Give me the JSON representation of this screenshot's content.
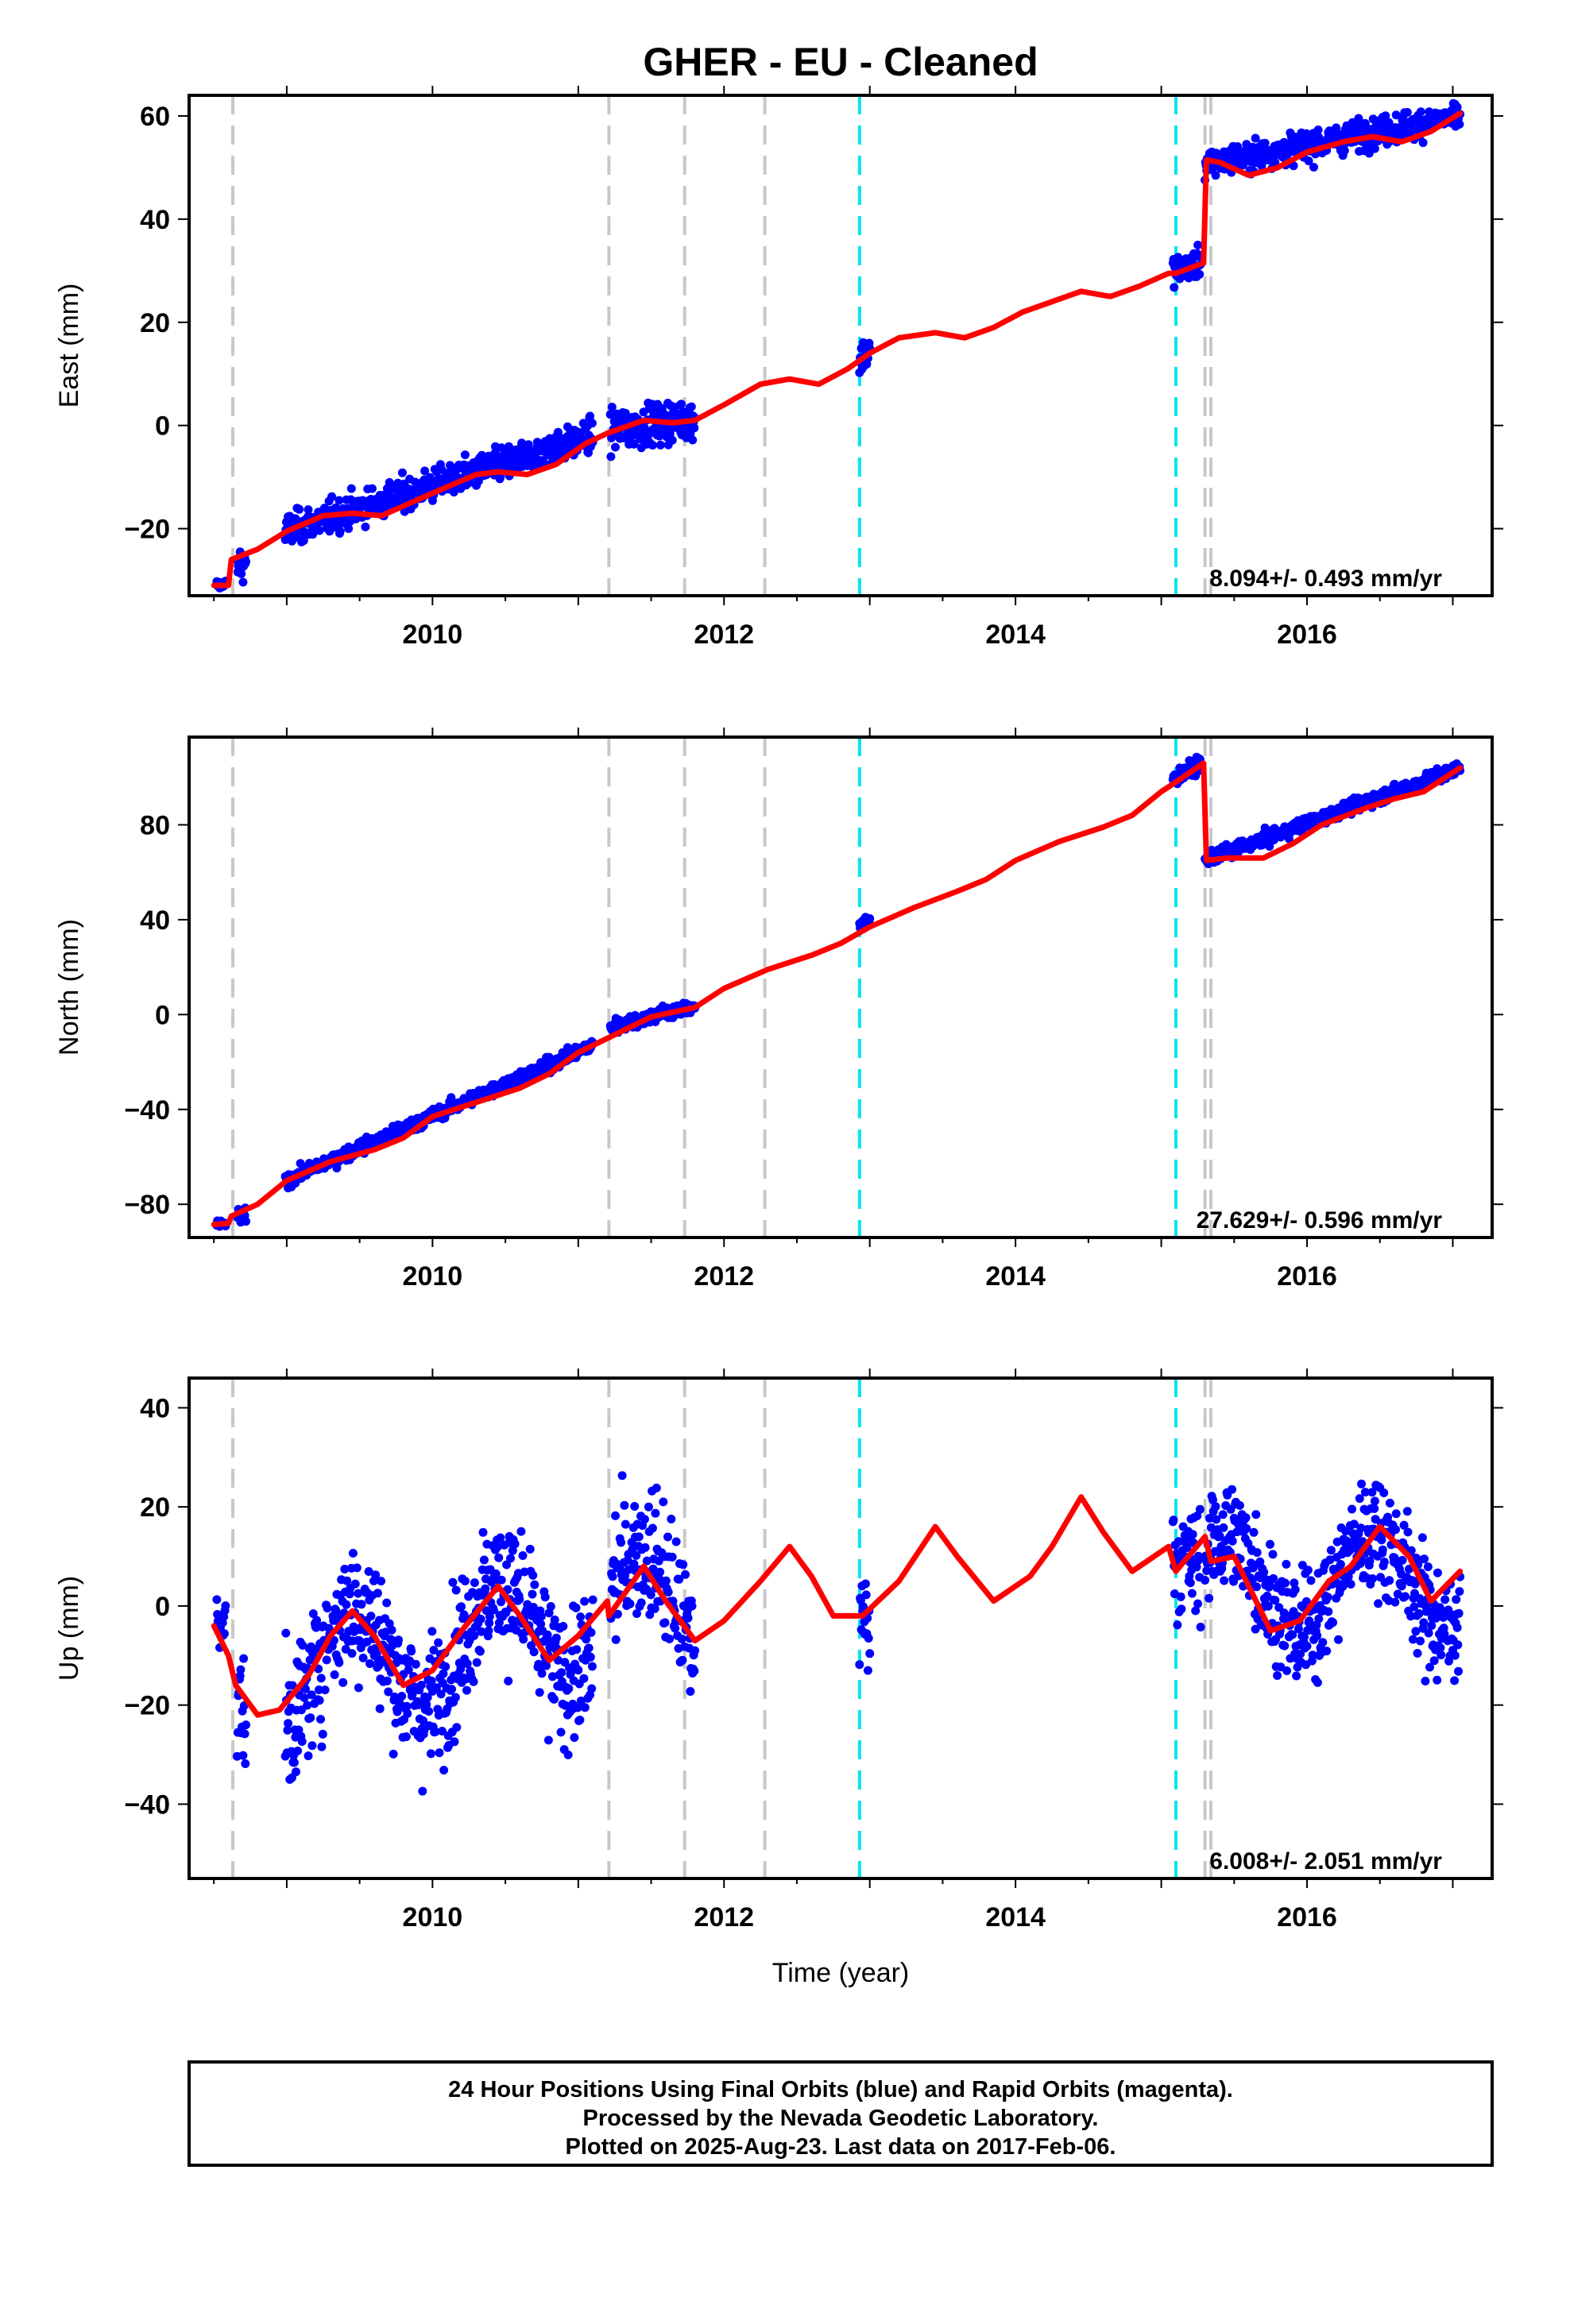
{
  "title": "GHER  - EU - Cleaned",
  "xlabel": "Time (year)",
  "footer": {
    "line1": "24 Hour Positions Using Final Orbits (blue) and Rapid Orbits (magenta).",
    "line2": "Processed by the Nevada Geodetic Laboratory.",
    "line3": "Plotted on 2025-Aug-23. Last data on 2017-Feb-06."
  },
  "colors": {
    "data_points": "#0000ff",
    "fit_line": "#ff0000",
    "gray_steps": "#c8c8c8",
    "cyan_steps": "#00e5ee"
  },
  "chart_data": [
    {
      "type": "scatter",
      "component": "east",
      "ylabel": "East (mm)",
      "rate": "8.094+/- 0.493 mm/yr",
      "xlim": [
        2008.33,
        2017.27
      ],
      "ylim": [
        -33,
        64
      ],
      "yticks": [
        -20,
        0,
        20,
        40,
        60
      ],
      "xticks": [
        2010,
        2012,
        2014,
        2016
      ],
      "series": [
        {
          "kind": "points",
          "segments": [
            {
              "t": [
                2008.52,
                2008.58
              ],
              "v": [
                -31.0,
                -31.0
              ],
              "noise": 0.8
            },
            {
              "t": [
                2008.66,
                2008.72
              ],
              "v": [
                -27.5,
                -26.5
              ],
              "noise": 2.5
            },
            {
              "t": [
                2008.99,
                2011.1
              ],
              "v": [
                -20.5,
                -2.0
              ],
              "noise": 2.2
            },
            {
              "t": [
                2011.22,
                2011.8
              ],
              "v": [
                -1.0,
                1.5
              ],
              "noise": 2.8
            },
            {
              "t": [
                2012.93,
                2013.0
              ],
              "v": [
                12.5,
                14.5
              ],
              "noise": 2.5
            },
            {
              "t": [
                2015.08,
                2015.27
              ],
              "v": [
                30.0,
                31.5
              ],
              "noise": 2.0
            },
            {
              "t": [
                2015.3,
                2017.05
              ],
              "v": [
                50.5,
                60.0
              ],
              "noise": 2.0
            }
          ]
        },
        {
          "kind": "fit",
          "x": [
            2008.5,
            2008.6,
            2008.62,
            2008.8,
            2009.0,
            2009.25,
            2009.45,
            2009.65,
            2009.85,
            2010.05,
            2010.3,
            2010.45,
            2010.65,
            2010.85,
            2011.05,
            2011.2,
            2011.45,
            2011.65,
            2011.8,
            2012.0,
            2012.25,
            2012.45,
            2012.65,
            2012.85,
            2013.0,
            2013.2,
            2013.45,
            2013.65,
            2013.85,
            2014.05,
            2014.25,
            2014.45,
            2014.65,
            2014.85,
            2015.05,
            2015.1,
            2015.29,
            2015.31,
            2015.4,
            2015.6,
            2015.8,
            2016.0,
            2016.25,
            2016.45,
            2016.65,
            2016.85,
            2017.05
          ],
          "y": [
            -31.0,
            -31.0,
            -26.0,
            -24.0,
            -20.5,
            -17.5,
            -17.0,
            -17.5,
            -15.0,
            -12.5,
            -9.5,
            -9.0,
            -9.5,
            -7.5,
            -3.5,
            -1.5,
            1.0,
            0.5,
            1.0,
            4.0,
            8.0,
            9.0,
            8.0,
            11.0,
            14.0,
            17.0,
            18.0,
            17.0,
            19.0,
            22.0,
            24.0,
            26.0,
            25.0,
            27.0,
            29.5,
            29.5,
            31.5,
            51.5,
            51.0,
            48.5,
            50.0,
            53.0,
            55.0,
            56.0,
            55.0,
            57.0,
            60.5
          ]
        }
      ],
      "events": {
        "gray": [
          2008.63,
          2011.21,
          2011.73,
          2012.28,
          2015.3,
          2015.34
        ],
        "cyan": [
          2012.93,
          2015.1
        ]
      }
    },
    {
      "type": "scatter",
      "component": "north",
      "ylabel": "North (mm)",
      "rate": "27.629+/- 0.596 mm/yr",
      "xlim": [
        2008.33,
        2017.27
      ],
      "ylim": [
        -94,
        117
      ],
      "yticks": [
        -80,
        -40,
        0,
        40,
        80
      ],
      "xticks": [
        2010,
        2012,
        2014,
        2016
      ],
      "series": [
        {
          "kind": "points",
          "segments": [
            {
              "t": [
                2008.52,
                2008.58
              ],
              "v": [
                -88.5,
                -88.0
              ],
              "noise": 1.2
            },
            {
              "t": [
                2008.66,
                2008.72
              ],
              "v": [
                -86.0,
                -85.0
              ],
              "noise": 2.0
            },
            {
              "t": [
                2008.99,
                2011.1
              ],
              "v": [
                -70.0,
                -13.0
              ],
              "noise": 2.0
            },
            {
              "t": [
                2011.22,
                2011.8
              ],
              "v": [
                -5.0,
                3.5
              ],
              "noise": 2.2
            },
            {
              "t": [
                2012.93,
                2013.0
              ],
              "v": [
                37.5,
                39.5
              ],
              "noise": 1.5
            },
            {
              "t": [
                2015.08,
                2015.27
              ],
              "v": [
                99.0,
                106.0
              ],
              "noise": 2.2
            },
            {
              "t": [
                2015.3,
                2017.05
              ],
              "v": [
                65.0,
                104.0
              ],
              "noise": 2.0
            }
          ]
        },
        {
          "kind": "fit",
          "x": [
            2008.5,
            2008.6,
            2008.62,
            2008.8,
            2009.0,
            2009.3,
            2009.6,
            2009.8,
            2010.0,
            2010.3,
            2010.6,
            2010.8,
            2011.0,
            2011.2,
            2011.5,
            2011.8,
            2012.0,
            2012.3,
            2012.6,
            2012.8,
            2013.0,
            2013.3,
            2013.6,
            2013.8,
            2014.0,
            2014.3,
            2014.6,
            2014.8,
            2015.0,
            2015.1,
            2015.29,
            2015.31,
            2015.45,
            2015.7,
            2015.9,
            2016.1,
            2016.4,
            2016.6,
            2016.8,
            2017.05
          ],
          "y": [
            -88.5,
            -88.0,
            -85.0,
            -80.0,
            -70.0,
            -62.0,
            -57.0,
            -52.0,
            -43.0,
            -37.0,
            -31.0,
            -25.0,
            -16.0,
            -10.0,
            -1.0,
            3.0,
            11.0,
            19.0,
            25.0,
            30.0,
            37.0,
            45.0,
            52.0,
            57.0,
            65.0,
            73.0,
            79.0,
            84.0,
            94.0,
            98.0,
            106.0,
            65.0,
            66.0,
            66.0,
            72.0,
            80.0,
            87.0,
            91.0,
            94.0,
            104.0
          ]
        }
      ],
      "events": {
        "gray": [
          2008.63,
          2011.21,
          2011.73,
          2012.28,
          2015.3,
          2015.34
        ],
        "cyan": [
          2012.93,
          2015.1
        ]
      }
    },
    {
      "type": "scatter",
      "component": "up",
      "ylabel": "Up (mm)",
      "rate": "6.008+/- 2.051 mm/yr",
      "xlim": [
        2008.33,
        2017.27
      ],
      "ylim": [
        -55,
        46
      ],
      "yticks": [
        -40,
        -20,
        0,
        20,
        40
      ],
      "xticks": [
        2010,
        2012,
        2014,
        2016
      ],
      "series": [
        {
          "kind": "points",
          "segments": [
            {
              "t": [
                2008.52,
                2008.58
              ],
              "v": [
                -2.0,
                -4.0
              ],
              "noise": 4.0
            },
            {
              "t": [
                2008.66,
                2008.72
              ],
              "v": [
                -20.0,
                -22.0
              ],
              "noise": 9.0
            },
            {
              "t": [
                2008.99,
                2011.1
              ],
              "v": [
                -14.0,
                -3.0
              ],
              "noise": 9.5,
              "seasonal": 11.0
            },
            {
              "t": [
                2011.22,
                2011.8
              ],
              "v": [
                2.0,
                -3.0
              ],
              "noise": 9.5,
              "seasonal": 11.0
            },
            {
              "t": [
                2012.93,
                2013.0
              ],
              "v": [
                -3.0,
                -2.0
              ],
              "noise": 7.0
            },
            {
              "t": [
                2015.08,
                2015.27
              ],
              "v": [
                10.0,
                8.0
              ],
              "noise": 8.0
            },
            {
              "t": [
                2015.3,
                2017.05
              ],
              "v": [
                4.0,
                6.0
              ],
              "noise": 8.0,
              "seasonal": 10.0
            }
          ]
        },
        {
          "kind": "fit",
          "x": [
            2008.5,
            2008.6,
            2008.65,
            2008.8,
            2008.95,
            2009.15,
            2009.3,
            2009.45,
            2009.6,
            2009.8,
            2010.0,
            2010.2,
            2010.45,
            2010.6,
            2010.8,
            2011.0,
            2011.2,
            2011.21,
            2011.45,
            2011.6,
            2011.8,
            2012.0,
            2012.25,
            2012.45,
            2012.6,
            2012.75,
            2012.95,
            2013.2,
            2013.45,
            2013.6,
            2013.85,
            2014.1,
            2014.25,
            2014.45,
            2014.6,
            2014.8,
            2015.05,
            2015.1,
            2015.3,
            2015.34,
            2015.5,
            2015.75,
            2015.95,
            2016.15,
            2016.3,
            2016.5,
            2016.7,
            2016.85,
            2017.05
          ],
          "y": [
            -4.0,
            -10.0,
            -16.0,
            -22.0,
            -21.0,
            -14.0,
            -6.0,
            -1.0,
            -6.0,
            -16.0,
            -13.0,
            -5.0,
            4.0,
            -2.0,
            -11.0,
            -6.0,
            1.0,
            -2.0,
            8.0,
            1.0,
            -7.0,
            -3.0,
            5.0,
            12.0,
            6.0,
            -2.0,
            -2.0,
            5.0,
            16.0,
            10.0,
            1.0,
            6.0,
            12.0,
            22.0,
            15.0,
            7.0,
            12.0,
            7.0,
            14.0,
            9.0,
            10.0,
            -5.0,
            -3.0,
            5.0,
            8.0,
            16.0,
            10.0,
            1.0,
            7.0
          ]
        }
      ],
      "events": {
        "gray": [
          2008.63,
          2011.21,
          2011.73,
          2012.28,
          2015.3,
          2015.34
        ],
        "cyan": [
          2012.93,
          2015.1
        ]
      }
    }
  ]
}
